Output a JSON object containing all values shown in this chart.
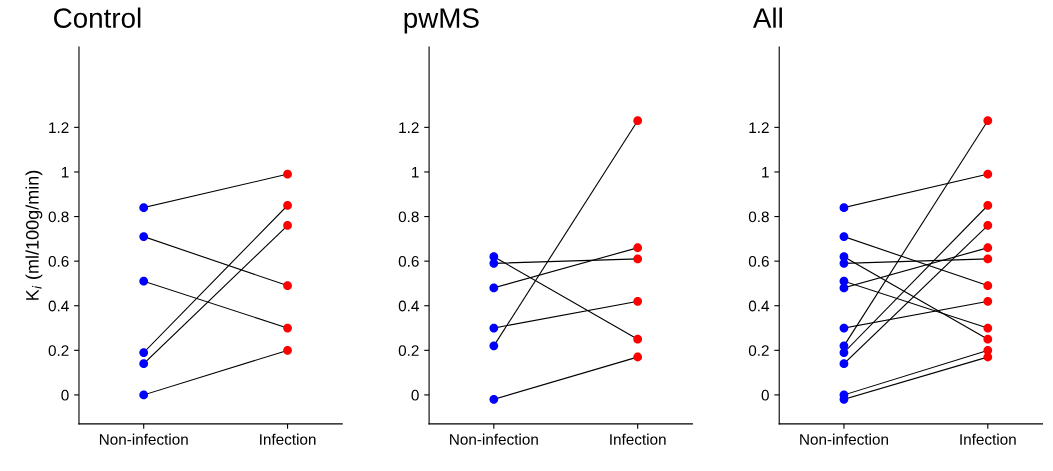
{
  "chart_data": [
    {
      "type": "line",
      "title": "Control",
      "ylabel": "K$_{i}$ (ml/100g/min)",
      "categories": [
        "Non-infection",
        "Infection"
      ],
      "ylim": [
        -0.13,
        1.56
      ],
      "yticks": [
        0,
        0.2,
        0.4,
        0.6,
        0.8,
        1,
        1.2
      ],
      "grid": false,
      "legend": false,
      "marker": "circle",
      "line_style": "solid",
      "tick_labels": "xy",
      "series": [
        {
          "color": "#000000",
          "colors": [
            "#0000ff",
            "#ff0000"
          ],
          "values": [
            0.84,
            0.99
          ]
        },
        {
          "color": "#000000",
          "colors": [
            "#0000ff",
            "#ff0000"
          ],
          "values": [
            0.71,
            0.49
          ]
        },
        {
          "color": "#000000",
          "colors": [
            "#0000ff",
            "#ff0000"
          ],
          "values": [
            0.51,
            0.3
          ]
        },
        {
          "color": "#000000",
          "colors": [
            "#0000ff",
            "#ff0000"
          ],
          "values": [
            0.19,
            0.85
          ]
        },
        {
          "color": "#000000",
          "colors": [
            "#0000ff",
            "#ff0000"
          ],
          "values": [
            0.14,
            0.76
          ]
        },
        {
          "color": "#000000",
          "colors": [
            "#0000ff",
            "#ff0000"
          ],
          "values": [
            0.0,
            0.2
          ]
        }
      ]
    },
    {
      "type": "line",
      "title": "pwMS",
      "categories": [
        "Non-infection",
        "Infection"
      ],
      "ylim": [
        -0.13,
        1.56
      ],
      "yticks": [
        0,
        0.2,
        0.4,
        0.6,
        0.8,
        1,
        1.2
      ],
      "grid": false,
      "legend": false,
      "marker": "circle",
      "line_style": "solid",
      "series": [
        {
          "color": "#000000",
          "colors": [
            "#0000ff",
            "#ff0000"
          ],
          "values": [
            0.62,
            0.25
          ]
        },
        {
          "color": "#000000",
          "colors": [
            "#0000ff",
            "#ff0000"
          ],
          "values": [
            0.59,
            0.61
          ]
        },
        {
          "color": "#000000",
          "colors": [
            "#0000ff",
            "#ff0000"
          ],
          "values": [
            0.48,
            0.66
          ]
        },
        {
          "color": "#000000",
          "colors": [
            "#0000ff",
            "#ff0000"
          ],
          "values": [
            0.3,
            0.42
          ]
        },
        {
          "color": "#000000",
          "colors": [
            "#0000ff",
            "#ff0000"
          ],
          "values": [
            0.22,
            1.23
          ]
        },
        {
          "color": "#000000",
          "colors": [
            "#0000ff",
            "#ff0000"
          ],
          "values": [
            -0.02,
            0.17
          ]
        }
      ]
    },
    {
      "type": "line",
      "title": "All",
      "categories": [
        "Non-infection",
        "Infection"
      ],
      "ylim": [
        -0.13,
        1.56
      ],
      "yticks": [
        0,
        0.2,
        0.4,
        0.6,
        0.8,
        1,
        1.2
      ],
      "grid": false,
      "legend": false,
      "marker": "circle",
      "line_style": "solid",
      "series": [
        {
          "color": "#000000",
          "colors": [
            "#0000ff",
            "#ff0000"
          ],
          "values": [
            0.84,
            0.99
          ]
        },
        {
          "color": "#000000",
          "colors": [
            "#0000ff",
            "#ff0000"
          ],
          "values": [
            0.71,
            0.49
          ]
        },
        {
          "color": "#000000",
          "colors": [
            "#0000ff",
            "#ff0000"
          ],
          "values": [
            0.51,
            0.3
          ]
        },
        {
          "color": "#000000",
          "colors": [
            "#0000ff",
            "#ff0000"
          ],
          "values": [
            0.19,
            0.85
          ]
        },
        {
          "color": "#000000",
          "colors": [
            "#0000ff",
            "#ff0000"
          ],
          "values": [
            0.14,
            0.76
          ]
        },
        {
          "color": "#000000",
          "colors": [
            "#0000ff",
            "#ff0000"
          ],
          "values": [
            0.0,
            0.2
          ]
        },
        {
          "color": "#000000",
          "colors": [
            "#0000ff",
            "#ff0000"
          ],
          "values": [
            0.62,
            0.25
          ]
        },
        {
          "color": "#000000",
          "colors": [
            "#0000ff",
            "#ff0000"
          ],
          "values": [
            0.59,
            0.61
          ]
        },
        {
          "color": "#000000",
          "colors": [
            "#0000ff",
            "#ff0000"
          ],
          "values": [
            0.48,
            0.66
          ]
        },
        {
          "color": "#000000",
          "colors": [
            "#0000ff",
            "#ff0000"
          ],
          "values": [
            0.3,
            0.42
          ]
        },
        {
          "color": "#000000",
          "colors": [
            "#0000ff",
            "#ff0000"
          ],
          "values": [
            0.22,
            1.23
          ]
        },
        {
          "color": "#000000",
          "colors": [
            "#0000ff",
            "#ff0000"
          ],
          "values": [
            -0.02,
            0.17
          ]
        }
      ]
    }
  ]
}
